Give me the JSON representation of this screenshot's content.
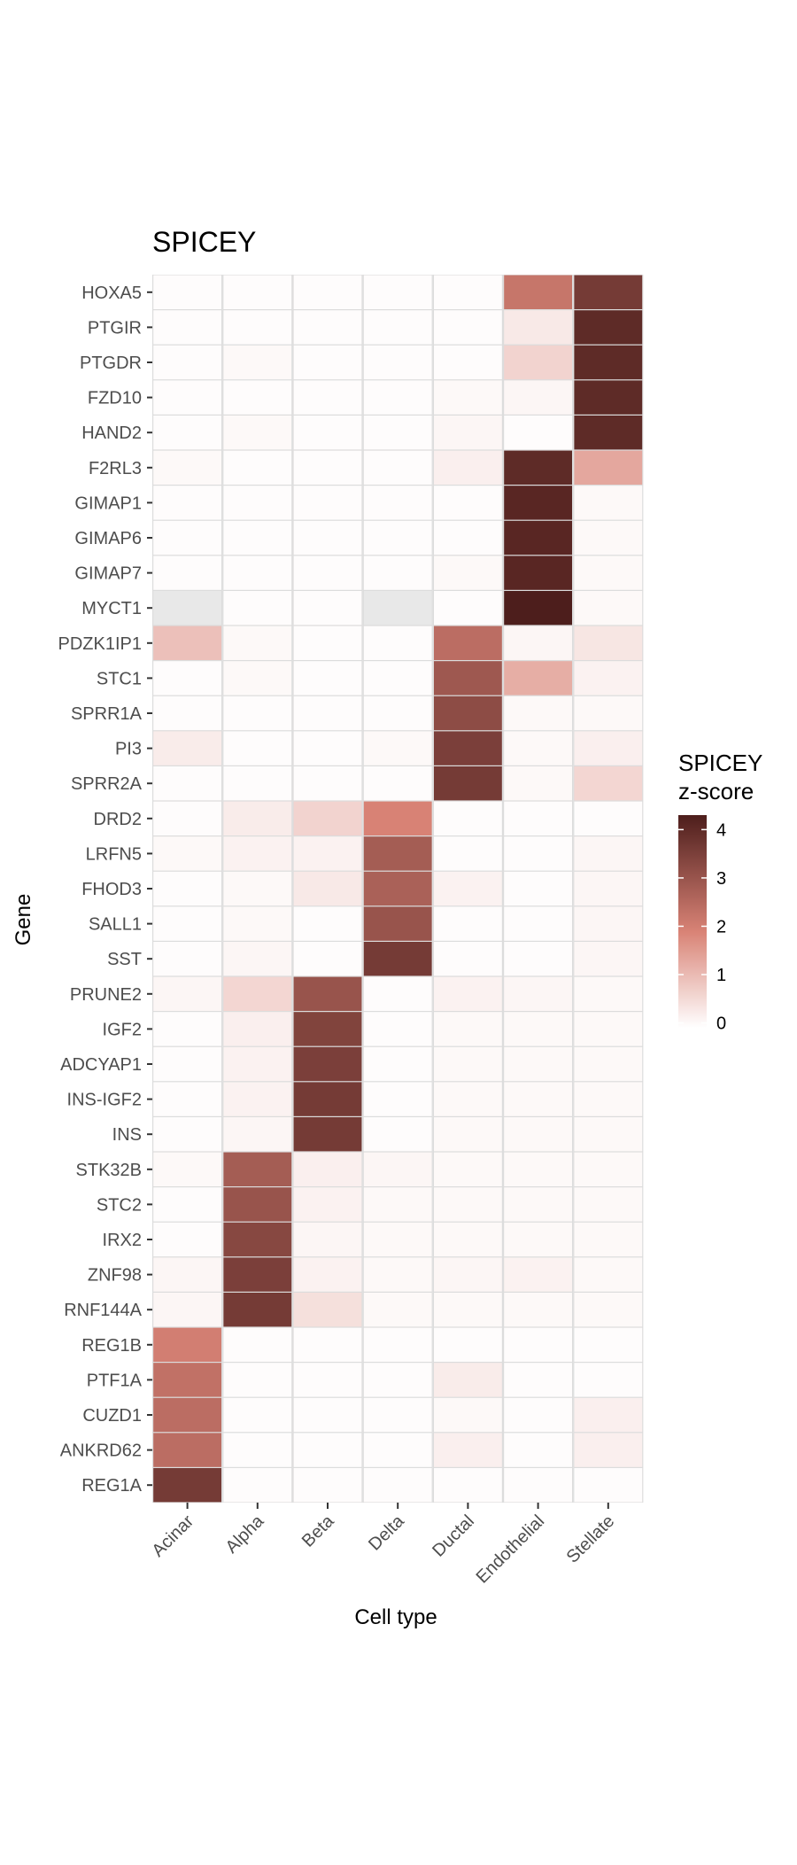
{
  "chart_data": {
    "type": "heatmap",
    "title": "SPICEY",
    "xlabel": "Cell type",
    "ylabel": "Gene",
    "x_categories": [
      "Acinar",
      "Alpha",
      "Beta",
      "Delta",
      "Ductal",
      "Endothelial",
      "Stellate"
    ],
    "y_categories": [
      "HOXA5",
      "PTGIR",
      "PTGDR",
      "FZD10",
      "HAND2",
      "F2RL3",
      "GIMAP1",
      "GIMAP6",
      "GIMAP7",
      "MYCT1",
      "PDZK1IP1",
      "STC1",
      "SPRR1A",
      "PI3",
      "SPRR2A",
      "DRD2",
      "LRFN5",
      "FHOD3",
      "SALL1",
      "SST",
      "PRUNE2",
      "IGF2",
      "ADCYAP1",
      "INS-IGF2",
      "INS",
      "STK32B",
      "STC2",
      "IRX2",
      "ZNF98",
      "RNF144A",
      "REG1B",
      "PTF1A",
      "CUZD1",
      "ANKRD62",
      "REG1A"
    ],
    "values": [
      [
        -0.05,
        -0.05,
        -0.05,
        -0.05,
        -0.05,
        2.2,
        3.6
      ],
      [
        -0.05,
        -0.05,
        -0.05,
        -0.05,
        -0.05,
        0.25,
        4.0
      ],
      [
        -0.05,
        0.0,
        -0.05,
        -0.05,
        -0.05,
        0.6,
        4.0
      ],
      [
        -0.05,
        -0.05,
        -0.05,
        -0.05,
        0.0,
        0.05,
        4.0
      ],
      [
        -0.05,
        0.0,
        -0.05,
        -0.05,
        0.05,
        -0.05,
        4.0
      ],
      [
        0.0,
        -0.05,
        -0.05,
        -0.05,
        0.15,
        4.0,
        1.3
      ],
      [
        -0.05,
        -0.05,
        -0.05,
        -0.05,
        -0.05,
        4.1,
        0.0
      ],
      [
        -0.05,
        -0.05,
        -0.05,
        -0.05,
        -0.05,
        4.1,
        0.0
      ],
      [
        -0.05,
        -0.05,
        -0.05,
        -0.05,
        0.0,
        4.1,
        0.0
      ],
      [
        null,
        -0.05,
        -0.05,
        null,
        -0.05,
        4.3,
        0.0
      ],
      [
        0.9,
        0.0,
        -0.05,
        -0.05,
        2.4,
        0.05,
        0.3
      ],
      [
        -0.05,
        0.0,
        -0.05,
        -0.05,
        2.9,
        1.2,
        0.1
      ],
      [
        -0.05,
        -0.05,
        -0.05,
        -0.05,
        3.2,
        0.0,
        0.0
      ],
      [
        0.2,
        -0.05,
        -0.05,
        0.0,
        3.5,
        0.0,
        0.15
      ],
      [
        -0.05,
        -0.05,
        -0.05,
        -0.05,
        3.6,
        0.0,
        0.55
      ],
      [
        -0.05,
        0.2,
        0.6,
        1.9,
        -0.05,
        -0.05,
        -0.05
      ],
      [
        0.0,
        0.1,
        0.1,
        2.8,
        -0.05,
        -0.05,
        0.05
      ],
      [
        -0.05,
        0.0,
        0.25,
        2.7,
        0.1,
        -0.05,
        0.05
      ],
      [
        -0.05,
        0.0,
        -0.05,
        3.0,
        -0.05,
        -0.05,
        0.05
      ],
      [
        -0.05,
        0.05,
        -0.05,
        3.6,
        -0.05,
        -0.05,
        0.05
      ],
      [
        0.05,
        0.55,
        3.0,
        -0.05,
        0.1,
        0.05,
        0.0
      ],
      [
        -0.05,
        0.15,
        3.4,
        -0.05,
        0.0,
        0.0,
        0.0
      ],
      [
        -0.05,
        0.1,
        3.5,
        -0.05,
        0.0,
        0.0,
        0.0
      ],
      [
        -0.05,
        0.1,
        3.6,
        -0.05,
        0.0,
        0.0,
        0.0
      ],
      [
        -0.05,
        0.05,
        3.6,
        -0.05,
        0.0,
        0.0,
        0.0
      ],
      [
        0.0,
        2.8,
        0.15,
        0.05,
        0.0,
        0.0,
        0.0
      ],
      [
        -0.05,
        3.0,
        0.1,
        0.0,
        0.0,
        0.0,
        0.0
      ],
      [
        -0.05,
        3.3,
        0.05,
        0.0,
        0.0,
        0.0,
        0.0
      ],
      [
        0.05,
        3.5,
        0.1,
        0.0,
        0.05,
        0.1,
        0.0
      ],
      [
        0.05,
        3.6,
        0.4,
        0.0,
        0.0,
        0.0,
        0.0
      ],
      [
        2.0,
        -0.05,
        -0.05,
        -0.05,
        -0.05,
        -0.05,
        -0.05
      ],
      [
        2.3,
        -0.05,
        -0.05,
        -0.05,
        0.2,
        -0.05,
        -0.05
      ],
      [
        2.4,
        -0.05,
        -0.05,
        -0.05,
        0.0,
        -0.05,
        0.15
      ],
      [
        2.4,
        -0.05,
        -0.05,
        -0.05,
        0.15,
        -0.05,
        0.15
      ],
      [
        3.6,
        -0.05,
        -0.05,
        -0.05,
        -0.05,
        -0.05,
        -0.05
      ]
    ],
    "legend": {
      "title_line1": "SPICEY",
      "title_line2": "z-score",
      "ticks": [
        0,
        1,
        2,
        3,
        4
      ],
      "range": [
        -0.1,
        4.3
      ],
      "placement": "right"
    },
    "colors": {
      "low": "#ffffff",
      "mid": "#d98376",
      "high": "#4d1e1c",
      "na": "#e8e8e8",
      "grid": "#cfcfcf"
    }
  }
}
